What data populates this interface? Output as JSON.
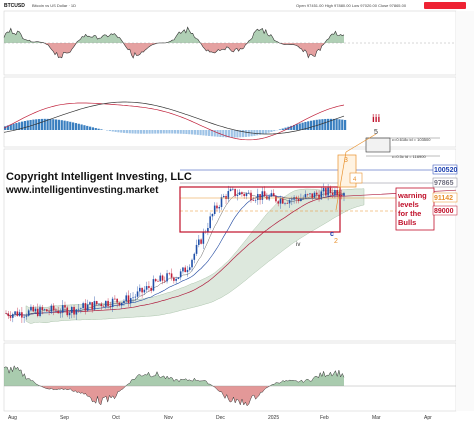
{
  "header": {
    "symbol": "BTCUSD",
    "symbol_desc": "Bitcoin vs US Dollar · 1D",
    "ohlc": "Open 97451.00  High 97880.00  Low 97020.00  Close 97865.00"
  },
  "watermark": {
    "line1": "Copyright Intelligent Investing, LLC",
    "line2": "www.intelligentinvesting.market"
  },
  "annotations": {
    "warning": [
      "warning",
      "levels",
      "for the",
      "Bulls"
    ],
    "wave_iii": "iii",
    "wave_iv": "iv",
    "wave_c": "c",
    "wave_2": "2",
    "wave_3": "3",
    "wave_4": "4",
    "wave_5": "5",
    "fib_top": "c=0.618c  id = 103500",
    "fib_mid": "c=0.5c  id = 116900"
  },
  "price_tags": {
    "p1": "100520",
    "p2": "97865",
    "p3": "91142",
    "p4": "89000"
  },
  "axis": {
    "months": [
      "Aug",
      "Sep",
      "Oct",
      "Nov",
      "Dec",
      "2025",
      "Feb",
      "Mar",
      "Apr"
    ]
  },
  "colors": {
    "up": "#1f4fa8",
    "down": "#c0203a",
    "red_box": "#c0102a",
    "orange": "#e8912d",
    "osc_fill_up": "#6fa878",
    "osc_fill_down": "#c44",
    "tag_blue": "#1a3fb0",
    "tag_gray": "#808090",
    "tag_red": "#c0102a",
    "tag_orange": "#e8912d"
  },
  "chart_data": {
    "type": "line",
    "x": [
      "Aug",
      "Sep",
      "Oct",
      "Nov",
      "Dec",
      "2025",
      "Feb"
    ],
    "series": [
      {
        "values": [
          58000,
          59000,
          62000,
          70000,
          97000,
          95000,
          97865
        ]
      }
    ]
  }
}
